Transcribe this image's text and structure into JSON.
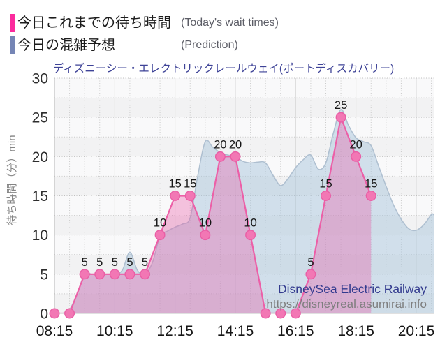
{
  "legend": {
    "items": [
      {
        "label_ja": "今日これまでの待ち時間",
        "label_en": "(Today's wait times)",
        "color": "#fb2b9d"
      },
      {
        "label_ja": "今日の混雑予想",
        "label_en": "(Prediction)",
        "color": "#7585b5"
      }
    ]
  },
  "watermark": {
    "site_name": "DisneySea Electric Railway",
    "url": "https://disneyreal.asumirai.info"
  },
  "chart_data": {
    "type": "area",
    "title": "ディズニーシー・エレクトリックレールウェイ(ポートディスカバリー)",
    "ylabel": "待ち時間（分）min",
    "ylim": [
      0,
      30
    ],
    "ytick_interval": 5,
    "yticks": [
      0,
      5,
      10,
      15,
      20,
      25,
      30
    ],
    "xticks": [
      "08:15",
      "10:15",
      "12:15",
      "14:15",
      "16:15",
      "18:15",
      "20:15"
    ],
    "grid": true,
    "legend_position": "top-left",
    "series": [
      {
        "name": "今日これまでの待ち時間",
        "type": "line",
        "line_color": "#ec5fa7",
        "fill_color": "rgba(236,88,166,0.35)",
        "point_fill": "#f277b4",
        "point_stroke": "#e95ea5",
        "show_point_labels": true,
        "x": [
          "08:15",
          "08:45",
          "09:15",
          "09:45",
          "10:15",
          "10:45",
          "11:15",
          "11:45",
          "12:15",
          "12:45",
          "13:15",
          "13:45",
          "14:15",
          "14:45",
          "15:15",
          "15:45",
          "16:15",
          "16:45",
          "17:15",
          "17:45",
          "18:15",
          "18:45"
        ],
        "values": [
          0,
          0,
          5,
          5,
          5,
          5,
          5,
          10,
          15,
          15,
          10,
          20,
          20,
          10,
          0,
          0,
          0,
          5,
          15,
          25,
          20,
          15
        ]
      },
      {
        "name": "今日の混雑予想",
        "type": "area-smooth",
        "line_color": "#aebfd0",
        "fill_color": "rgba(170,197,220,0.5)",
        "show_point_labels": false,
        "x": [
          "08:15",
          "08:30",
          "08:45",
          "09:00",
          "09:15",
          "09:30",
          "09:45",
          "10:00",
          "10:15",
          "10:30",
          "10:45",
          "11:00",
          "11:15",
          "11:30",
          "11:45",
          "12:00",
          "12:15",
          "12:30",
          "12:45",
          "13:00",
          "13:15",
          "13:30",
          "13:45",
          "14:00",
          "14:15",
          "14:30",
          "14:45",
          "15:00",
          "15:15",
          "15:30",
          "15:45",
          "16:00",
          "16:15",
          "16:30",
          "16:45",
          "17:00",
          "17:15",
          "17:30",
          "17:45",
          "18:00",
          "18:15",
          "18:30",
          "18:45",
          "19:00",
          "19:15",
          "19:30",
          "19:45",
          "20:00",
          "20:15",
          "20:30",
          "20:45"
        ],
        "values": [
          0,
          0,
          0.5,
          2.5,
          5,
          5,
          5,
          5,
          5,
          5.5,
          7.8,
          5.5,
          5,
          6.5,
          9.8,
          10.5,
          11,
          11.4,
          12.2,
          17.5,
          21.9,
          21.2,
          20.5,
          20.2,
          20,
          19.4,
          19.2,
          19.3,
          19.2,
          17.6,
          16.3,
          17.2,
          18.6,
          19.6,
          20.2,
          18.4,
          19.2,
          23,
          26,
          24,
          22.4,
          21.9,
          21.4,
          18.8,
          16.2,
          13.8,
          12,
          10.8,
          10.6,
          11.3,
          12.6
        ]
      }
    ]
  }
}
